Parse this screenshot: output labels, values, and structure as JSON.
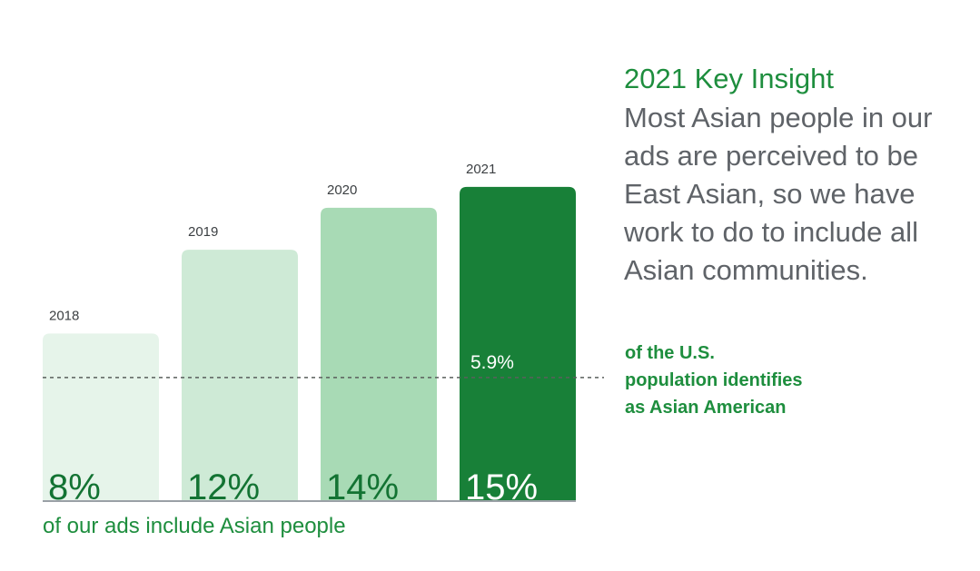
{
  "chart_data": {
    "type": "bar",
    "categories": [
      "2018",
      "2019",
      "2020",
      "2021"
    ],
    "values": [
      8,
      12,
      14,
      15
    ],
    "value_labels": [
      "8%",
      "12%",
      "14%",
      "15%"
    ],
    "bar_colors": [
      "#e6f4ea",
      "#ceead6",
      "#a8dab5",
      "#188038"
    ],
    "value_label_colors": [
      "#137333",
      "#137333",
      "#137333",
      "#ffffff"
    ],
    "ylim": [
      0,
      15.6
    ],
    "reference_line": {
      "value": 5.9,
      "label": "5.9%",
      "style": "dotted"
    },
    "caption": "of our ads include Asian people",
    "grid": false,
    "legend": "none"
  },
  "insight": {
    "title": "2021 Key Insight",
    "body": "Most Asian people in our ads are perceived to be East Asian, so we have work to do to include all Asian communities."
  },
  "reference_note": "of the U.S. population identifies as Asian American",
  "colors": {
    "accent_green": "#1e8e3e",
    "body_gray": "#5f6368",
    "baseline": "#9aa0a6"
  }
}
